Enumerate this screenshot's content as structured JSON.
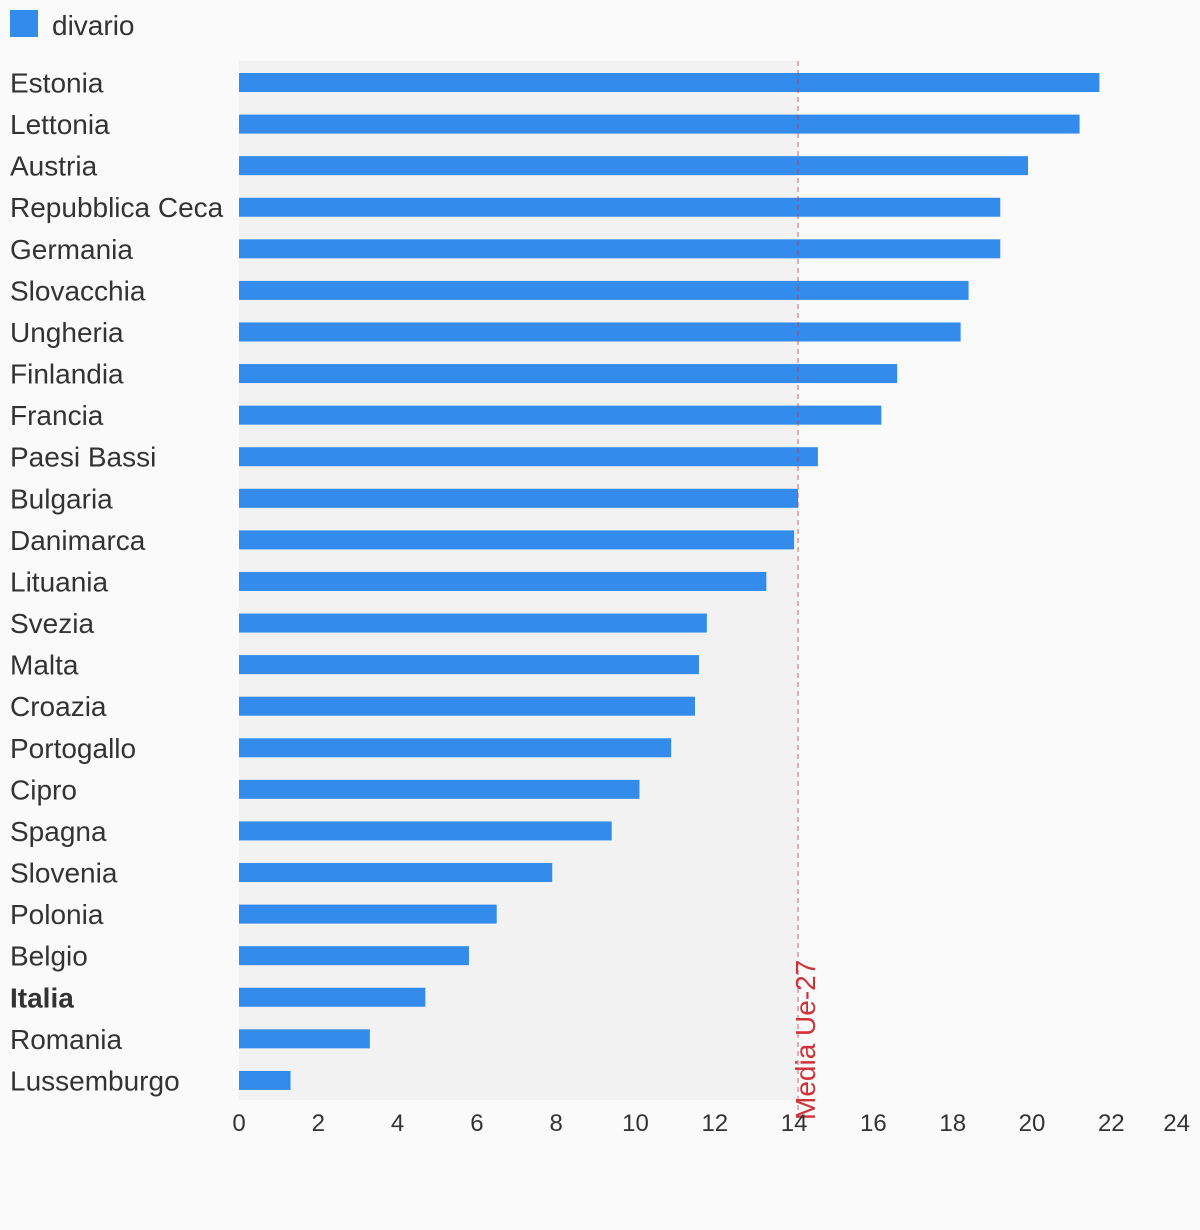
{
  "chart_data": {
    "type": "bar",
    "orientation": "horizontal",
    "categories": [
      "Estonia",
      "Lettonia",
      "Austria",
      "Repubblica Ceca",
      "Germania",
      "Slovacchia",
      "Ungheria",
      "Finlandia",
      "Francia",
      "Paesi Bassi",
      "Bulgaria",
      "Danimarca",
      "Lituania",
      "Svezia",
      "Malta",
      "Croazia",
      "Portogallo",
      "Cipro",
      "Spagna",
      "Slovenia",
      "Polonia",
      "Belgio",
      "Italia",
      "Romania",
      "Lussemburgo"
    ],
    "highlighted_category": "Italia",
    "series": [
      {
        "name": "divario",
        "color": "#338beb",
        "values": [
          21.7,
          21.2,
          19.9,
          19.2,
          19.2,
          18.4,
          18.2,
          16.6,
          16.2,
          14.6,
          14.1,
          14.0,
          13.3,
          11.8,
          11.6,
          11.5,
          10.9,
          10.1,
          9.4,
          7.9,
          6.5,
          5.8,
          4.7,
          3.3,
          1.3
        ]
      }
    ],
    "xlim": [
      0,
      24
    ],
    "x_ticks": [
      "0",
      "2",
      "4",
      "6",
      "8",
      "10",
      "12",
      "14",
      "16",
      "18",
      "20",
      "22",
      "24"
    ],
    "reference_line": {
      "label": "Media Ue-27",
      "value": 14.1,
      "color": "#d0323a",
      "style": "dashed"
    },
    "legend_position": "top-left",
    "grid": false,
    "background_shading": {
      "from": 0,
      "to": 14.1,
      "color": "#f2f2f3"
    }
  }
}
